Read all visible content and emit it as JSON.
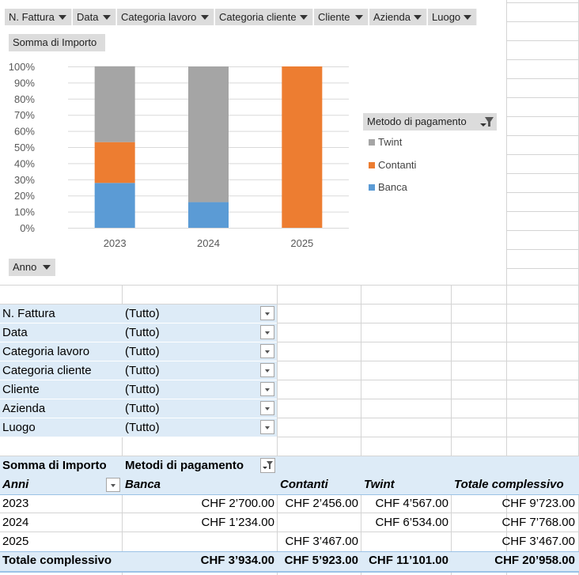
{
  "chart": {
    "field_buttons": [
      "N. Fattura",
      "Data",
      "Categoria lavoro",
      "Categoria cliente",
      "Cliente",
      "Azienda",
      "Luogo"
    ],
    "values_button": "Somma di Importo",
    "axis_button": "Anno",
    "legend_button": "Metodo di pagamento",
    "legend_items": [
      {
        "label": "Twint",
        "color": "#a5a5a5"
      },
      {
        "label": "Contanti",
        "color": "#ed7d31"
      },
      {
        "label": "Banca",
        "color": "#5b9bd5"
      }
    ]
  },
  "chart_data": {
    "type": "bar",
    "stacked": "percent",
    "categories": [
      "2023",
      "2024",
      "2025"
    ],
    "y_ticks": [
      "100%",
      "90%",
      "80%",
      "70%",
      "60%",
      "50%",
      "40%",
      "30%",
      "20%",
      "10%",
      "0%"
    ],
    "ylim": [
      0,
      100
    ],
    "series": [
      {
        "name": "Banca",
        "color": "#5b9bd5",
        "values": [
          27.8,
          15.9,
          0
        ]
      },
      {
        "name": "Contanti",
        "color": "#ed7d31",
        "values": [
          25.3,
          0,
          100
        ]
      },
      {
        "name": "Twint",
        "color": "#a5a5a5",
        "values": [
          47.0,
          84.1,
          0
        ]
      }
    ],
    "grid": true
  },
  "filters": [
    {
      "label": "N. Fattura",
      "value": "(Tutto)"
    },
    {
      "label": "Data",
      "value": "(Tutto)"
    },
    {
      "label": "Categoria lavoro",
      "value": "(Tutto)"
    },
    {
      "label": "Categoria cliente",
      "value": "(Tutto)"
    },
    {
      "label": "Cliente",
      "value": "(Tutto)"
    },
    {
      "label": "Azienda",
      "value": "(Tutto)"
    },
    {
      "label": "Luogo",
      "value": "(Tutto)"
    }
  ],
  "pivot": {
    "values_label": "Somma di Importo",
    "columns_label": "Metodi di pagamento",
    "row_field": "Anni",
    "col_headers": [
      "Banca",
      "Contanti",
      "Twint",
      "Totale complessivo"
    ],
    "rows": [
      {
        "year": "2023",
        "banca": "CHF 2’700.00",
        "contanti": "CHF 2’456.00",
        "twint": "CHF 4’567.00",
        "totale": "CHF 9’723.00"
      },
      {
        "year": "2024",
        "banca": "CHF 1’234.00",
        "contanti": "",
        "twint": "CHF 6’534.00",
        "totale": "CHF 7’768.00"
      },
      {
        "year": "2025",
        "banca": "",
        "contanti": "CHF 3’467.00",
        "twint": "",
        "totale": "CHF 3’467.00"
      }
    ],
    "total": {
      "label": "Totale complessivo",
      "banca": "CHF 3’934.00",
      "contanti": "CHF 5’923.00",
      "twint": "CHF 11’101.00",
      "totale": "CHF 20’958.00"
    }
  }
}
